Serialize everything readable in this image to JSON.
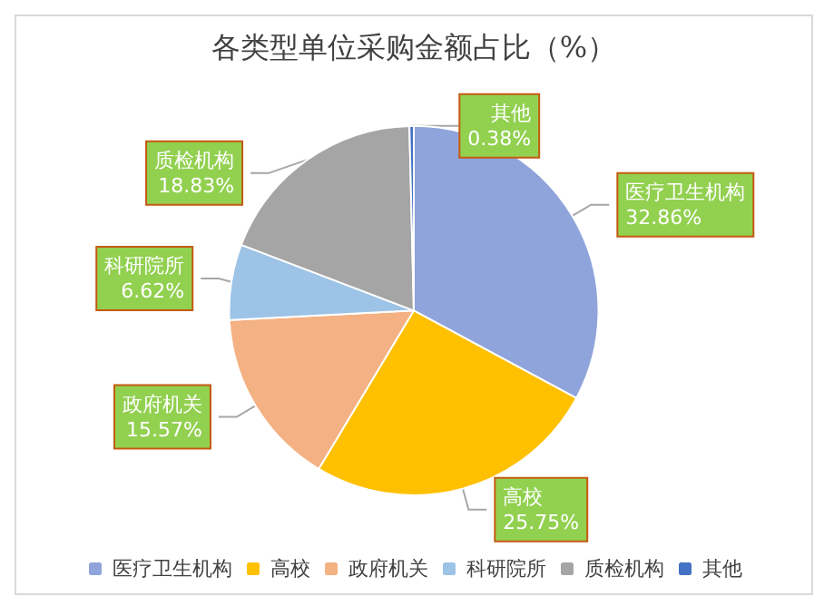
{
  "chart_data": {
    "type": "pie",
    "title": "各类型单位采购金额占比（%）",
    "categories": [
      "医疗卫生机构",
      "高校",
      "政府机关",
      "科研院所",
      "质检机构",
      "其他"
    ],
    "values": [
      32.86,
      25.75,
      15.57,
      6.62,
      18.83,
      0.38
    ],
    "colors": [
      "#8fa4da",
      "#ffc000",
      "#f4b183",
      "#9dc3e6",
      "#a5a5a5",
      "#4472c4"
    ],
    "value_labels": [
      "32.86%",
      "25.75%",
      "15.57%",
      "6.62%",
      "18.83%",
      "0.38%"
    ],
    "legend": "bottom"
  }
}
